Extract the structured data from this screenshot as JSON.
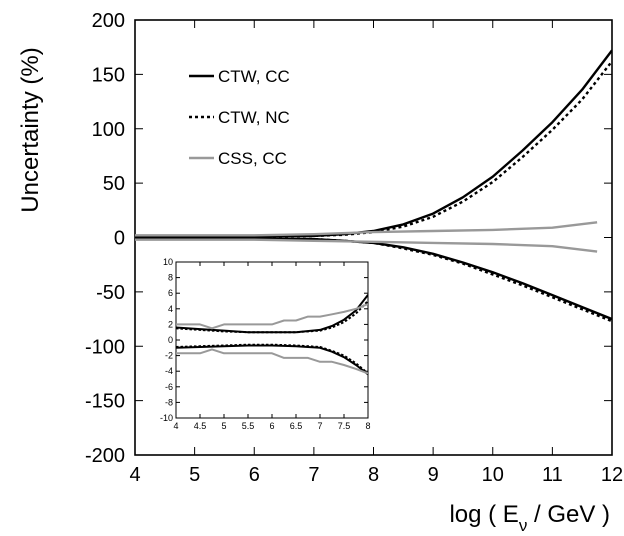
{
  "chart_data": [
    {
      "type": "line",
      "title": "",
      "xlabel_prefix": "log ( E",
      "xlabel_sub": "ν",
      "xlabel_suffix": " / GeV )",
      "ylabel": "Uncertainty (%)",
      "xlim": [
        4,
        12
      ],
      "ylim": [
        -200,
        200
      ],
      "xticks": [
        4,
        5,
        6,
        7,
        8,
        9,
        10,
        11,
        12
      ],
      "yticks": [
        -200,
        -150,
        -100,
        -50,
        0,
        50,
        100,
        150,
        200
      ],
      "legend_position": "top-left",
      "series": [
        {
          "name": "CTW, CC",
          "style": "solid",
          "color": "#000000",
          "x": [
            4,
            5,
            6,
            7,
            7.5,
            8,
            8.5,
            9,
            9.5,
            10,
            10.5,
            11,
            11.5,
            12
          ],
          "values": [
            1,
            1,
            1,
            1.5,
            3,
            6,
            12,
            22,
            37,
            56,
            80,
            106,
            136,
            172
          ]
        },
        {
          "name": "CTW, CC",
          "style": "solid",
          "color": "#000000",
          "x": [
            4,
            5,
            6,
            7,
            7.5,
            8,
            8.5,
            9,
            9.5,
            10,
            10.5,
            11,
            11.5,
            12
          ],
          "values": [
            -1,
            -1,
            -1,
            -1.5,
            -3,
            -5,
            -9,
            -15,
            -23,
            -32,
            -42,
            -53,
            -64,
            -75
          ]
        },
        {
          "name": "CTW, NC",
          "style": "dotted",
          "color": "#000000",
          "x": [
            4,
            5,
            6,
            7,
            7.5,
            8,
            8.5,
            9,
            9.5,
            10,
            10.5,
            11,
            11.5,
            12
          ],
          "values": [
            1,
            1,
            1,
            1.5,
            2.5,
            5,
            10,
            19,
            33,
            51,
            74,
            99,
            127,
            162
          ]
        },
        {
          "name": "CTW, NC",
          "style": "dotted",
          "color": "#000000",
          "x": [
            4,
            5,
            6,
            7,
            7.5,
            8,
            8.5,
            9,
            9.5,
            10,
            10.5,
            11,
            11.5,
            12
          ],
          "values": [
            -1,
            -1,
            -1,
            -1.5,
            -3,
            -5,
            -10,
            -16,
            -24,
            -34,
            -44,
            -55,
            -66,
            -77
          ]
        },
        {
          "name": "CSS, CC",
          "style": "solid",
          "color": "#999999",
          "x": [
            4,
            5,
            6,
            7,
            8,
            9,
            10,
            11,
            11.75
          ],
          "values": [
            2,
            2,
            2,
            3,
            5,
            6,
            7,
            9,
            14
          ]
        },
        {
          "name": "CSS, CC",
          "style": "solid",
          "color": "#999999",
          "x": [
            4,
            5,
            6,
            7,
            8,
            9,
            10,
            11,
            11.75
          ],
          "values": [
            -2,
            -2,
            -2,
            -3,
            -4,
            -5,
            -6,
            -8,
            -13
          ]
        }
      ],
      "legend": [
        {
          "label": "CTW, CC",
          "style": "solid",
          "color": "#000000"
        },
        {
          "label": "CTW, NC",
          "style": "dotted",
          "color": "#000000"
        },
        {
          "label": "CSS, CC",
          "style": "solid",
          "color": "#999999"
        }
      ]
    },
    {
      "type": "line",
      "title": "",
      "xlabel": "",
      "ylabel": "",
      "xlim": [
        4,
        8
      ],
      "ylim": [
        -10,
        10
      ],
      "xticks": [
        "4",
        "4.5",
        "5",
        "5.5",
        "6",
        "6.5",
        "7",
        "7.5",
        "8"
      ],
      "yticks": [
        "-10",
        "-8",
        "-6",
        "-4",
        "-2",
        "0",
        "2",
        "4",
        "6",
        "8",
        "10"
      ],
      "series": [
        {
          "style": "solid",
          "color": "#000000",
          "x": [
            4,
            4.5,
            5,
            5.5,
            6,
            6.5,
            7,
            7.25,
            7.5,
            7.75,
            8
          ],
          "values": [
            1.6,
            1.4,
            1.2,
            1.0,
            1.0,
            1.0,
            1.3,
            1.8,
            2.6,
            3.8,
            5.8
          ]
        },
        {
          "style": "solid",
          "color": "#000000",
          "x": [
            4,
            4.5,
            5,
            5.5,
            6,
            6.5,
            7,
            7.25,
            7.5,
            7.75,
            8
          ],
          "values": [
            -1.0,
            -0.9,
            -0.8,
            -0.7,
            -0.7,
            -0.8,
            -1.0,
            -1.5,
            -2.2,
            -3.2,
            -4.4
          ]
        },
        {
          "style": "dotted",
          "color": "#000000",
          "x": [
            4,
            4.5,
            5,
            5.5,
            6,
            6.5,
            7,
            7.25,
            7.5,
            7.75,
            8
          ],
          "values": [
            1.5,
            1.3,
            1.1,
            1.0,
            1.0,
            1.0,
            1.2,
            1.6,
            2.3,
            3.4,
            5.0
          ]
        },
        {
          "style": "dotted",
          "color": "#000000",
          "x": [
            4,
            4.5,
            5,
            5.5,
            6,
            6.5,
            7,
            7.25,
            7.5,
            7.75,
            8
          ],
          "values": [
            -0.9,
            -0.8,
            -0.7,
            -0.6,
            -0.6,
            -0.7,
            -0.9,
            -1.4,
            -2.0,
            -3.0,
            -4.3
          ]
        },
        {
          "style": "solid",
          "color": "#999999",
          "x": [
            4,
            4.5,
            4.75,
            5,
            5.5,
            6,
            6.25,
            6.5,
            6.75,
            7,
            7.25,
            7.5,
            7.75,
            8
          ],
          "values": [
            2,
            2,
            1.5,
            2,
            2,
            2,
            2.5,
            2.5,
            3,
            3,
            3.3,
            3.6,
            4,
            4.6
          ]
        },
        {
          "style": "solid",
          "color": "#999999",
          "x": [
            4,
            4.5,
            4.75,
            5,
            5.5,
            6,
            6.25,
            6.5,
            6.75,
            7,
            7.25,
            7.5,
            7.75,
            8
          ],
          "values": [
            -1.7,
            -1.7,
            -1.2,
            -1.7,
            -1.7,
            -1.7,
            -2.3,
            -2.3,
            -2.3,
            -2.8,
            -2.8,
            -3.2,
            -3.7,
            -4.3
          ]
        }
      ]
    }
  ]
}
